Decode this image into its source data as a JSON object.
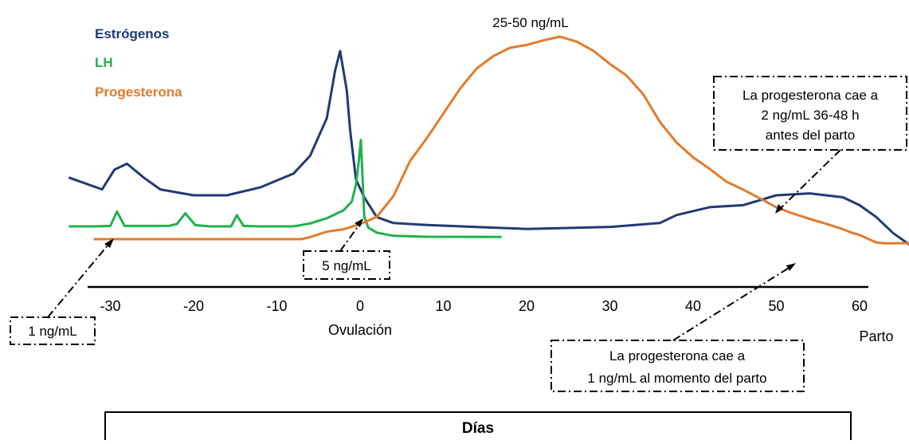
{
  "chart_data": {
    "type": "line",
    "title": "",
    "xlabel": "Días",
    "ylabel": "",
    "xlim": [
      -35,
      70
    ],
    "x_ticks": [
      -30,
      -20,
      -10,
      0,
      10,
      20,
      30,
      40,
      50,
      60
    ],
    "x_tick_labels": [
      "-30",
      "-20",
      "-10",
      "0",
      "10",
      "20",
      "30",
      "40",
      "50",
      "60"
    ],
    "axis_annotations": {
      "ovulation": "Ovulación",
      "birth": "Parto"
    },
    "legend": {
      "placement": "top-left",
      "entries": [
        "Estrógenos",
        "LH",
        "Progesterona"
      ]
    },
    "grid": false,
    "series": [
      {
        "name": "Estrógenos",
        "color": "#1f3b73",
        "relative_level": true,
        "points": [
          [
            -35,
            0.36
          ],
          [
            -31,
            0.3
          ],
          [
            -29.5,
            0.4
          ],
          [
            -28,
            0.43
          ],
          [
            -26,
            0.36
          ],
          [
            -24,
            0.3
          ],
          [
            -20,
            0.27
          ],
          [
            -16,
            0.27
          ],
          [
            -12,
            0.31
          ],
          [
            -8,
            0.38
          ],
          [
            -6,
            0.47
          ],
          [
            -4,
            0.66
          ],
          [
            -3,
            0.9
          ],
          [
            -2.4,
            1.0
          ],
          [
            -1.6,
            0.8
          ],
          [
            -1.2,
            0.6
          ],
          [
            -0.5,
            0.35
          ],
          [
            0.5,
            0.26
          ],
          [
            2,
            0.16
          ],
          [
            4,
            0.13
          ],
          [
            8,
            0.12
          ],
          [
            20,
            0.1
          ],
          [
            30,
            0.11
          ],
          [
            36,
            0.13
          ],
          [
            38,
            0.17
          ],
          [
            42,
            0.21
          ],
          [
            46,
            0.22
          ],
          [
            50,
            0.27
          ],
          [
            54,
            0.28
          ],
          [
            58,
            0.26
          ],
          [
            60,
            0.22
          ],
          [
            62,
            0.16
          ],
          [
            64,
            0.08
          ],
          [
            66,
            0.02
          ],
          [
            70,
            0.0
          ]
        ]
      },
      {
        "name": "LH",
        "color": "#22b04b",
        "relative_level": true,
        "points": [
          [
            -35,
            0.0
          ],
          [
            -32,
            0.0
          ],
          [
            -30,
            0.02
          ],
          [
            -29.2,
            0.6
          ],
          [
            -28.3,
            0.02
          ],
          [
            -23,
            0.02
          ],
          [
            -22,
            0.1
          ],
          [
            -21,
            0.53
          ],
          [
            -19.8,
            0.05
          ],
          [
            -18,
            0.0
          ],
          [
            -15.5,
            0.0
          ],
          [
            -14.8,
            0.45
          ],
          [
            -14,
            0.02
          ],
          [
            -12,
            0.0
          ],
          [
            -8,
            0.0
          ],
          [
            -6,
            0.12
          ],
          [
            -4,
            0.33
          ],
          [
            -2,
            0.65
          ],
          [
            -1,
            1.0
          ],
          [
            -0.5,
            1.7
          ],
          [
            -0.2,
            2.5
          ],
          [
            0.1,
            3.5
          ],
          [
            0.5,
            0.4
          ],
          [
            1,
            -0.05
          ],
          [
            2,
            -0.25
          ],
          [
            4,
            -0.38
          ],
          [
            8,
            -0.42
          ],
          [
            17,
            -0.43
          ]
        ]
      },
      {
        "name": "Progesterona",
        "color": "#e27b2b",
        "unit": "ng/mL",
        "points": [
          [
            -32,
            1.0
          ],
          [
            -20,
            1.0
          ],
          [
            -7,
            1.0
          ],
          [
            -6,
            1.5
          ],
          [
            -4,
            2.8
          ],
          [
            -2,
            3.4
          ],
          [
            0,
            4.6
          ],
          [
            2,
            6.4
          ],
          [
            4,
            11.4
          ],
          [
            6,
            19.9
          ],
          [
            8,
            25.4
          ],
          [
            10,
            31.4
          ],
          [
            12,
            37.4
          ],
          [
            14,
            42.3
          ],
          [
            16,
            45.3
          ],
          [
            18,
            47.3
          ],
          [
            20,
            48.0
          ],
          [
            22,
            49.1
          ],
          [
            24,
            50.0
          ],
          [
            26,
            48.8
          ],
          [
            28,
            46.6
          ],
          [
            30,
            43.4
          ],
          [
            32,
            40.6
          ],
          [
            34,
            36.1
          ],
          [
            36,
            29.4
          ],
          [
            38,
            24.4
          ],
          [
            40,
            20.8
          ],
          [
            42,
            18.0
          ],
          [
            44,
            14.9
          ],
          [
            46,
            13.0
          ],
          [
            48,
            10.9
          ],
          [
            50,
            8.7
          ],
          [
            52,
            7.2
          ],
          [
            54,
            5.9
          ],
          [
            56,
            4.7
          ],
          [
            58,
            3.4
          ],
          [
            59,
            2.6
          ],
          [
            60,
            2.0
          ],
          [
            61,
            1.1
          ],
          [
            62,
            0.2
          ],
          [
            63,
            0.0
          ],
          [
            64,
            0.0
          ],
          [
            70,
            0.1
          ]
        ]
      }
    ],
    "annotations": {
      "peak": "25-50 ng/mL",
      "baseline": "1 ng/mL",
      "ovulation_level": "5 ng/mL",
      "drop_before_birth": [
        "La progesterona cae a",
        "2 ng/mL 36-48 h",
        "antes del parto"
      ],
      "at_birth": [
        "La progesterona cae a",
        "1 ng/mL al momento del parto"
      ]
    }
  }
}
